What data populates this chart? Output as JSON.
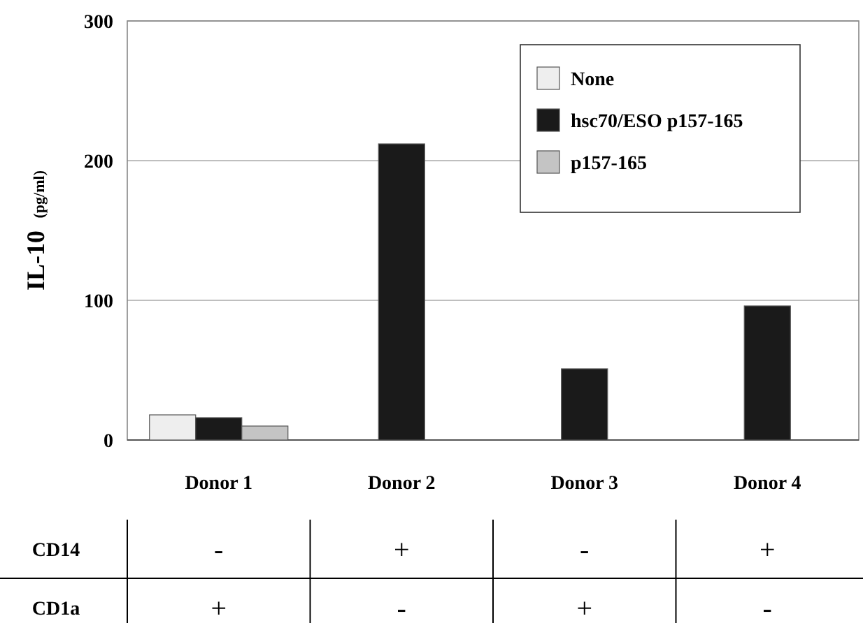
{
  "chart_data": {
    "type": "bar",
    "ylabel": "IL-10 (pg/ml)",
    "categories": [
      "Donor 1",
      "Donor 2",
      "Donor 3",
      "Donor 4"
    ],
    "series": [
      {
        "name": "None",
        "color": "#eeeeee",
        "values": [
          18,
          null,
          null,
          null
        ]
      },
      {
        "name": "hsc70/ESO p157-165",
        "color": "#1a1a1a",
        "values": [
          16,
          212,
          51,
          96
        ]
      },
      {
        "name": "p157-165",
        "color": "#c4c4c4",
        "values": [
          10,
          null,
          null,
          null
        ]
      }
    ],
    "ylim": [
      0,
      300
    ],
    "yticks": [
      0,
      100,
      200,
      300
    ],
    "grid": "y",
    "legend": "top right",
    "annotations": [
      "CD14",
      "-",
      "+",
      "-",
      "+",
      "CD1a",
      "+",
      "-",
      "+",
      "-"
    ]
  }
}
